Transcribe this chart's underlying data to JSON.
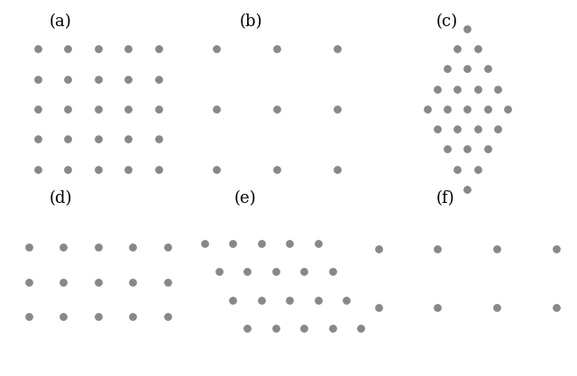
{
  "dot_color": "#888888",
  "dot_size": 28,
  "bg_color": "#ffffff",
  "label_fontsize": 13,
  "panels": {
    "a": {
      "label": "(a)",
      "points_x": [
        0,
        1,
        2,
        3,
        4,
        0,
        1,
        2,
        3,
        4,
        0,
        1,
        2,
        3,
        4,
        0,
        1,
        2,
        3,
        4,
        0,
        1,
        2,
        3,
        4
      ],
      "points_y": [
        4,
        4,
        4,
        4,
        4,
        3,
        3,
        3,
        3,
        3,
        2,
        2,
        2,
        2,
        2,
        1,
        1,
        1,
        1,
        1,
        0,
        0,
        0,
        0,
        0
      ]
    },
    "b": {
      "label": "(b)",
      "points_x": [
        0,
        2,
        4,
        0,
        2,
        4,
        0,
        2,
        4
      ],
      "points_y": [
        4,
        4,
        4,
        2,
        2,
        2,
        0,
        0,
        0
      ]
    },
    "c": {
      "label": "(c)",
      "points_x": [
        4.0,
        3.5,
        4.5,
        3.0,
        4.0,
        5.0,
        2.5,
        3.5,
        4.5,
        5.5,
        2.0,
        3.0,
        4.0,
        5.0,
        6.0,
        2.5,
        3.5,
        4.5,
        5.5,
        3.0,
        4.0,
        5.0,
        3.5,
        4.5,
        4.0
      ],
      "points_y": [
        8.0,
        7.0,
        7.0,
        6.0,
        6.0,
        6.0,
        5.0,
        5.0,
        5.0,
        5.0,
        4.0,
        4.0,
        4.0,
        4.0,
        4.0,
        3.0,
        3.0,
        3.0,
        3.0,
        2.0,
        2.0,
        2.0,
        1.0,
        1.0,
        0.0
      ]
    },
    "d": {
      "label": "(d)",
      "points_x": [
        0,
        1,
        2,
        3,
        4,
        0,
        1,
        2,
        3,
        4,
        0,
        1,
        2,
        3,
        4
      ],
      "points_y": [
        2,
        2,
        2,
        2,
        2,
        1,
        1,
        1,
        1,
        1,
        0,
        0,
        0,
        0,
        0
      ]
    },
    "e": {
      "label": "(e)",
      "points_x": [
        0.0,
        1.0,
        2.0,
        3.0,
        4.0,
        0.5,
        1.5,
        2.5,
        3.5,
        4.5,
        1.0,
        2.0,
        3.0,
        4.0,
        5.0,
        1.5,
        2.5,
        3.5,
        4.5,
        5.5
      ],
      "points_y": [
        3,
        3,
        3,
        3,
        3,
        2,
        2,
        2,
        2,
        2,
        1,
        1,
        1,
        1,
        1,
        0,
        0,
        0,
        0,
        0
      ]
    },
    "f": {
      "label": "(f)",
      "points_x": [
        0,
        2,
        4,
        6,
        0,
        2,
        4,
        6
      ],
      "points_y": [
        2,
        2,
        2,
        2,
        0,
        0,
        0,
        0
      ]
    }
  }
}
